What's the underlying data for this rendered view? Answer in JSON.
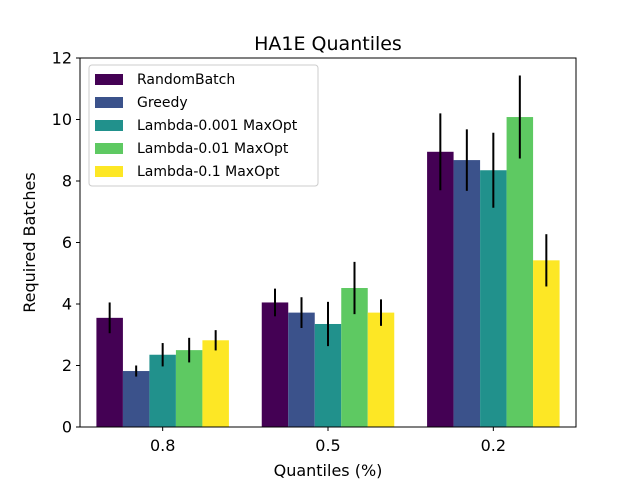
{
  "chart_data": {
    "type": "bar",
    "title": "HA1E Quantiles",
    "xlabel": "Quantiles (%)",
    "ylabel": "Required Batches",
    "categories": [
      "0.8",
      "0.5",
      "0.2"
    ],
    "ylim": [
      0,
      12
    ],
    "yticks": [
      0,
      2,
      4,
      6,
      8,
      10,
      12
    ],
    "legend_position": "top-left",
    "series": [
      {
        "name": "RandomBatch",
        "color": "#440154",
        "values": [
          3.55,
          4.05,
          8.95
        ],
        "errors": [
          0.5,
          0.45,
          1.25
        ]
      },
      {
        "name": "Greedy",
        "color": "#3b528b",
        "values": [
          1.82,
          3.72,
          8.68
        ],
        "errors": [
          0.18,
          0.5,
          1.0
        ]
      },
      {
        "name": "Lambda-0.001 MaxOpt",
        "color": "#21918c",
        "values": [
          2.35,
          3.35,
          8.35
        ],
        "errors": [
          0.38,
          0.72,
          1.22
        ]
      },
      {
        "name": "Lambda-0.01 MaxOpt",
        "color": "#5ec962",
        "values": [
          2.5,
          4.52,
          10.08
        ],
        "errors": [
          0.4,
          0.85,
          1.35
        ]
      },
      {
        "name": "Lambda-0.1 MaxOpt",
        "color": "#fde725",
        "values": [
          2.82,
          3.72,
          5.42
        ],
        "errors": [
          0.33,
          0.43,
          0.85
        ]
      }
    ]
  }
}
